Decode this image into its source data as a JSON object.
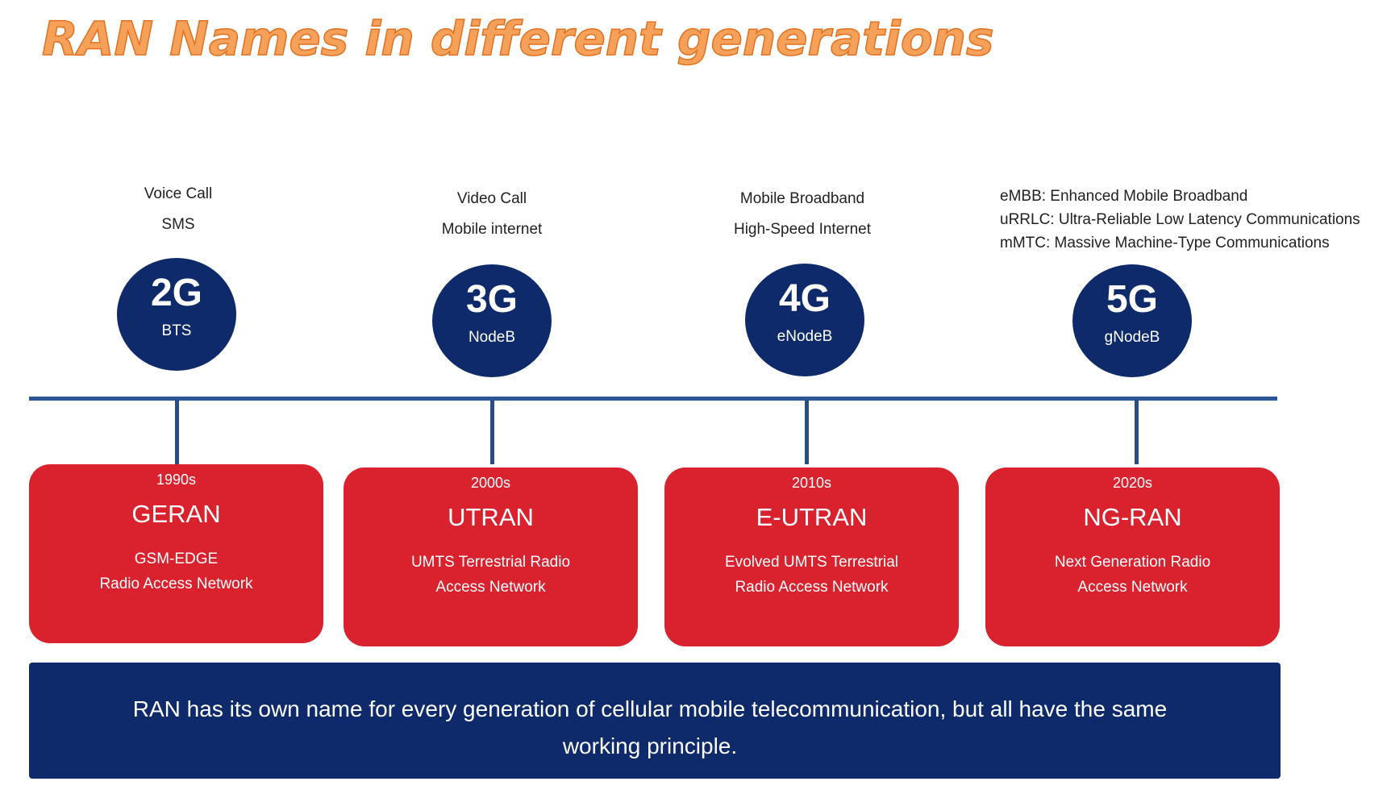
{
  "title": "RAN Names in different generations",
  "generations": [
    {
      "gen": "2G",
      "node": "BTS",
      "uses": [
        "Voice Call",
        "SMS"
      ],
      "decade": "1990s",
      "ran": "GERAN",
      "full": [
        "GSM-EDGE",
        "Radio Access Network"
      ]
    },
    {
      "gen": "3G",
      "node": "NodeB",
      "uses": [
        "Video Call",
        "Mobile internet"
      ],
      "decade": "2000s",
      "ran": "UTRAN",
      "full": [
        "UMTS Terrestrial Radio",
        "Access Network"
      ]
    },
    {
      "gen": "4G",
      "node": "eNodeB",
      "uses": [
        "Mobile Broadband",
        "High-Speed Internet"
      ],
      "decade": "2010s",
      "ran": "E-UTRAN",
      "full": [
        "Evolved UMTS Terrestrial",
        "Radio Access Network"
      ]
    },
    {
      "gen": "5G",
      "node": "gNodeB",
      "uses": [
        "eMBB: Enhanced Mobile Broadband",
        "uRRLC: Ultra-Reliable Low Latency Communications",
        "mMTC: Massive Machine-Type Communications"
      ],
      "decade": "2020s",
      "ran": "NG-RAN",
      "full": [
        "Next Generation Radio",
        "Access Network"
      ]
    }
  ],
  "summary": {
    "line1": "RAN has its own name for every generation of cellular mobile telecommunication, but all have the same",
    "line2": "working principle."
  },
  "colors": {
    "navy": "#0f2a6b",
    "red": "#d9222e",
    "title_orange": "#f6a15a",
    "line_blue": "#2a5696"
  }
}
